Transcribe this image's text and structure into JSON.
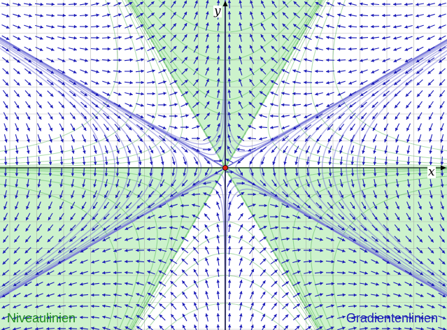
{
  "diagram": {
    "xlabel": "x",
    "ylabel": "y",
    "legend": {
      "level_label": "Niveaulinien",
      "gradient_label": "Gradientenlinien"
    },
    "critical_point": {
      "x": 0,
      "y": 0
    },
    "colors": {
      "level_lines": "#22a022",
      "level_label": "#1e8c1e",
      "fill_positive": "#ccf2cc",
      "gradient_lines": "#7a7ad8",
      "arrows": "#1a1ab8",
      "gradient_label": "#1a1ab8",
      "grid": "#9a9a9a",
      "axes": "#000000",
      "origin": "#e02010"
    }
  }
}
